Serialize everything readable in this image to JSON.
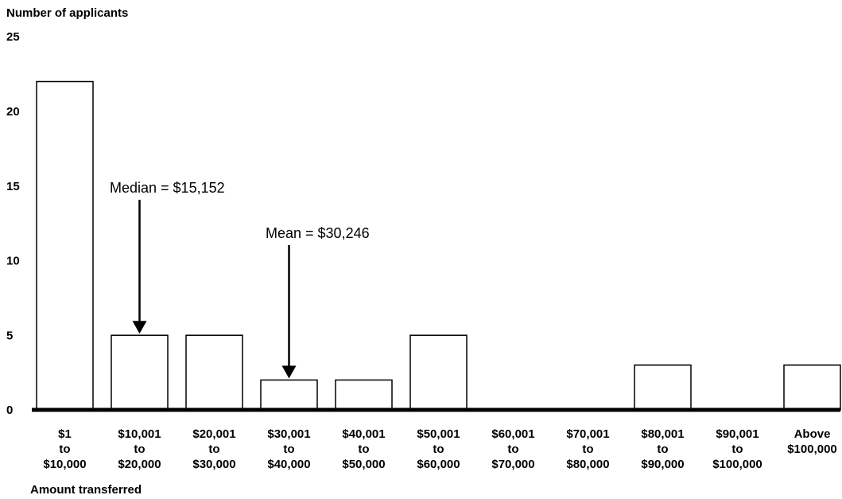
{
  "chart_data": {
    "type": "bar",
    "ylabel": "Number of applicants",
    "xlabel": "Amount transferred",
    "ylim": [
      0,
      25
    ],
    "yticks": [
      0,
      5,
      10,
      15,
      20,
      25
    ],
    "categories": [
      [
        "$1",
        "to",
        "$10,000"
      ],
      [
        "$10,001",
        "to",
        "$20,000"
      ],
      [
        "$20,001",
        "to",
        "$30,000"
      ],
      [
        "$30,001",
        "to",
        "$40,000"
      ],
      [
        "$40,001",
        "to",
        "$50,000"
      ],
      [
        "$50,001",
        "to",
        "$60,000"
      ],
      [
        "$60,001",
        "to",
        "$70,000"
      ],
      [
        "$70,001",
        "to",
        "$80,000"
      ],
      [
        "$80,001",
        "to",
        "$90,000"
      ],
      [
        "$90,001",
        "to",
        "$100,000"
      ],
      [
        "Above",
        "$100,000"
      ]
    ],
    "values": [
      22,
      5,
      5,
      2,
      2,
      5,
      0,
      0,
      3,
      0,
      3
    ],
    "grid": false,
    "bar_fill": "#ffffff",
    "bar_stroke": "#000000",
    "annotations": [
      {
        "text": "Median = $15,152",
        "target_category_index": 1,
        "arrow": "down"
      },
      {
        "text": "Mean = $30,246",
        "target_category_index": 3,
        "arrow": "down"
      }
    ]
  }
}
